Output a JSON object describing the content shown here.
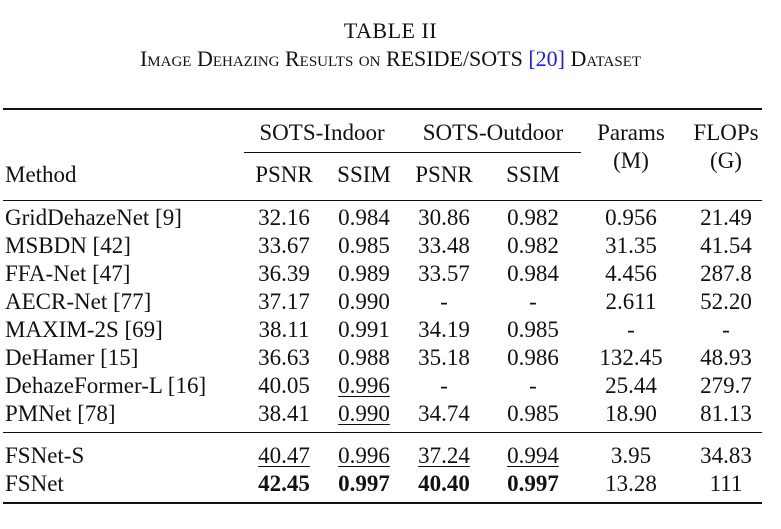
{
  "caption": {
    "label": "TABLE II",
    "title_pre": "Image Dehazing Results on RESIDE/SOTS ",
    "title_ref": "[20]",
    "title_post": " Dataset"
  },
  "header": {
    "group1": "SOTS-Indoor",
    "group2": "SOTS-Outdoor",
    "method": "Method",
    "psnr": "PSNR",
    "ssim": "SSIM",
    "params_l1": "Params",
    "params_l2": "(M)",
    "flops_l1": "FLOPs",
    "flops_l2": "(G)"
  },
  "rows": [
    {
      "method": "GridDehazeNet [9]",
      "in_psnr": "32.16",
      "in_ssim": "0.984",
      "out_psnr": "30.86",
      "out_ssim": "0.982",
      "params": "0.956",
      "flops": "21.49"
    },
    {
      "method": "MSBDN [42]",
      "in_psnr": "33.67",
      "in_ssim": "0.985",
      "out_psnr": "33.48",
      "out_ssim": "0.982",
      "params": "31.35",
      "flops": "41.54"
    },
    {
      "method": "FFA-Net [47]",
      "in_psnr": "36.39",
      "in_ssim": "0.989",
      "out_psnr": "33.57",
      "out_ssim": "0.984",
      "params": "4.456",
      "flops": "287.8"
    },
    {
      "method": "AECR-Net [77]",
      "in_psnr": "37.17",
      "in_ssim": "0.990",
      "out_psnr": "-",
      "out_ssim": "-",
      "params": "2.611",
      "flops": "52.20"
    },
    {
      "method": "MAXIM-2S [69]",
      "in_psnr": "38.11",
      "in_ssim": "0.991",
      "out_psnr": "34.19",
      "out_ssim": "0.985",
      "params": "-",
      "flops": "-"
    },
    {
      "method": "DeHamer [15]",
      "in_psnr": "36.63",
      "in_ssim": "0.988",
      "out_psnr": "35.18",
      "out_ssim": "0.986",
      "params": "132.45",
      "flops": "48.93"
    },
    {
      "method": "DehazeFormer-L [16]",
      "in_psnr": "40.05",
      "in_ssim": "0.996",
      "out_psnr": "-",
      "out_ssim": "-",
      "params": "25.44",
      "flops": "279.7"
    },
    {
      "method": "PMNet [78]",
      "in_psnr": "38.41",
      "in_ssim": "0.990",
      "out_psnr": "34.74",
      "out_ssim": "0.985",
      "params": "18.90",
      "flops": "81.13"
    },
    {
      "method": "FSNet-S",
      "in_psnr": "40.47",
      "in_ssim": "0.996",
      "out_psnr": "37.24",
      "out_ssim": "0.994",
      "params": "3.95",
      "flops": "34.83"
    },
    {
      "method": "FSNet",
      "in_psnr": "42.45",
      "in_ssim": "0.997",
      "out_psnr": "40.40",
      "out_ssim": "0.997",
      "params": "13.28",
      "flops": "111"
    }
  ]
}
